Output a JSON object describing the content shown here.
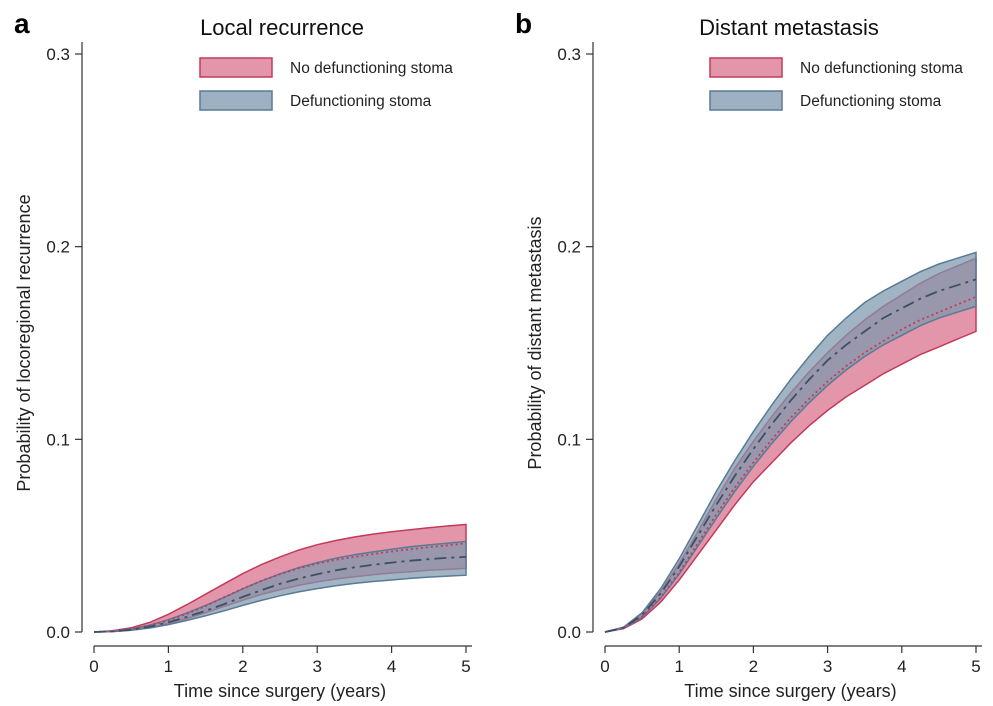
{
  "chart_data": [
    {
      "type": "area",
      "panel_label": "a",
      "title": "Local recurrence",
      "xlabel": "Time since surgery (years)",
      "ylabel": "Probability of locoregional recurrence",
      "xlim": [
        0,
        5
      ],
      "ylim": [
        0,
        0.3
      ],
      "xticks": [
        "0",
        "1",
        "2",
        "3",
        "4",
        "5"
      ],
      "yticks": [
        "0.0",
        "0.1",
        "0.2",
        "0.3"
      ],
      "legend_position": "top-right",
      "grid": false,
      "x": [
        0,
        0.25,
        0.5,
        0.75,
        1,
        1.25,
        1.5,
        1.75,
        2,
        2.25,
        2.5,
        2.75,
        3,
        3.25,
        3.5,
        3.75,
        4,
        4.25,
        4.5,
        4.75,
        5
      ],
      "series": [
        {
          "name": "No defunctioning stoma",
          "fill": "#d9738c",
          "stroke": "#c33a5c",
          "line_color": "#c33a5c",
          "line_style": "dotted",
          "estimate": [
            0,
            0.0004,
            0.0015,
            0.0034,
            0.006,
            0.0095,
            0.0135,
            0.018,
            0.0225,
            0.0265,
            0.03,
            0.033,
            0.0355,
            0.0375,
            0.039,
            0.0405,
            0.0418,
            0.043,
            0.044,
            0.045,
            0.046
          ],
          "lower": [
            0,
            0.0003,
            0.001,
            0.0024,
            0.0044,
            0.007,
            0.01,
            0.0133,
            0.0165,
            0.0195,
            0.022,
            0.0242,
            0.026,
            0.0275,
            0.0287,
            0.0297,
            0.0306,
            0.0313,
            0.032,
            0.0325,
            0.033
          ],
          "upper": [
            0,
            0.0006,
            0.0022,
            0.005,
            0.0092,
            0.0142,
            0.0196,
            0.025,
            0.0303,
            0.035,
            0.039,
            0.0425,
            0.0453,
            0.0475,
            0.0493,
            0.0508,
            0.052,
            0.0531,
            0.0541,
            0.055,
            0.0558
          ]
        },
        {
          "name": "Defunctioning stoma",
          "fill": "#7d97ad",
          "stroke": "#5a7a96",
          "line_color": "#3d4f66",
          "line_style": "dash-dot",
          "estimate": [
            0,
            0.0003,
            0.0012,
            0.0028,
            0.005,
            0.0079,
            0.011,
            0.0145,
            0.0182,
            0.0217,
            0.025,
            0.0277,
            0.03,
            0.032,
            0.0336,
            0.0349,
            0.036,
            0.037,
            0.0378,
            0.0385,
            0.039
          ],
          "lower": [
            0,
            0.0002,
            0.0009,
            0.0021,
            0.0038,
            0.006,
            0.0084,
            0.011,
            0.0138,
            0.0164,
            0.0188,
            0.0208,
            0.0225,
            0.024,
            0.0252,
            0.0262,
            0.027,
            0.0278,
            0.0285,
            0.029,
            0.0295
          ],
          "upper": [
            0,
            0.0004,
            0.0016,
            0.0036,
            0.0064,
            0.0099,
            0.0138,
            0.018,
            0.0224,
            0.0265,
            0.0302,
            0.0334,
            0.036,
            0.0383,
            0.0401,
            0.0416,
            0.043,
            0.0442,
            0.0452,
            0.0461,
            0.047
          ]
        }
      ]
    },
    {
      "type": "area",
      "panel_label": "b",
      "title": "Distant metastasis",
      "xlabel": "Time since surgery (years)",
      "ylabel": "Probability of distant metastasis",
      "xlim": [
        0,
        5
      ],
      "ylim": [
        0,
        0.3
      ],
      "xticks": [
        "0",
        "1",
        "2",
        "3",
        "4",
        "5"
      ],
      "yticks": [
        "0.0",
        "0.1",
        "0.2",
        "0.3"
      ],
      "legend_position": "top-right",
      "grid": false,
      "x": [
        0,
        0.25,
        0.5,
        0.75,
        1,
        1.25,
        1.5,
        1.75,
        2,
        2.25,
        2.5,
        2.75,
        3,
        3.25,
        3.5,
        3.75,
        4,
        4.25,
        4.5,
        4.75,
        5
      ],
      "series": [
        {
          "name": "No defunctioning stoma",
          "fill": "#d9738c",
          "stroke": "#c33a5c",
          "line_color": "#c33a5c",
          "line_style": "dotted",
          "estimate": [
            0,
            0.002,
            0.008,
            0.018,
            0.031,
            0.046,
            0.061,
            0.075,
            0.088,
            0.1,
            0.111,
            0.121,
            0.13,
            0.138,
            0.145,
            0.151,
            0.157,
            0.162,
            0.166,
            0.17,
            0.174
          ],
          "lower": [
            0,
            0.0017,
            0.0068,
            0.0155,
            0.027,
            0.04,
            0.053,
            0.066,
            0.078,
            0.088,
            0.098,
            0.107,
            0.115,
            0.122,
            0.128,
            0.134,
            0.139,
            0.144,
            0.148,
            0.152,
            0.156
          ],
          "upper": [
            0,
            0.0024,
            0.0095,
            0.021,
            0.0355,
            0.052,
            0.069,
            0.085,
            0.099,
            0.112,
            0.124,
            0.135,
            0.145,
            0.154,
            0.162,
            0.169,
            0.175,
            0.181,
            0.186,
            0.19,
            0.194
          ]
        },
        {
          "name": "Defunctioning stoma",
          "fill": "#7d97ad",
          "stroke": "#5a7a96",
          "line_color": "#3d4f66",
          "line_style": "dash-dot",
          "estimate": [
            0,
            0.0022,
            0.0088,
            0.02,
            0.034,
            0.05,
            0.066,
            0.081,
            0.095,
            0.108,
            0.12,
            0.131,
            0.141,
            0.149,
            0.156,
            0.163,
            0.168,
            0.173,
            0.177,
            0.18,
            0.183
          ],
          "lower": [
            0,
            0.0019,
            0.0076,
            0.0175,
            0.03,
            0.0445,
            0.059,
            0.073,
            0.086,
            0.098,
            0.109,
            0.119,
            0.128,
            0.136,
            0.143,
            0.149,
            0.154,
            0.159,
            0.163,
            0.166,
            0.169
          ],
          "upper": [
            0,
            0.0025,
            0.01,
            0.0225,
            0.038,
            0.0555,
            0.073,
            0.089,
            0.104,
            0.118,
            0.131,
            0.143,
            0.154,
            0.163,
            0.171,
            0.177,
            0.182,
            0.187,
            0.191,
            0.194,
            0.197
          ]
        }
      ]
    }
  ]
}
